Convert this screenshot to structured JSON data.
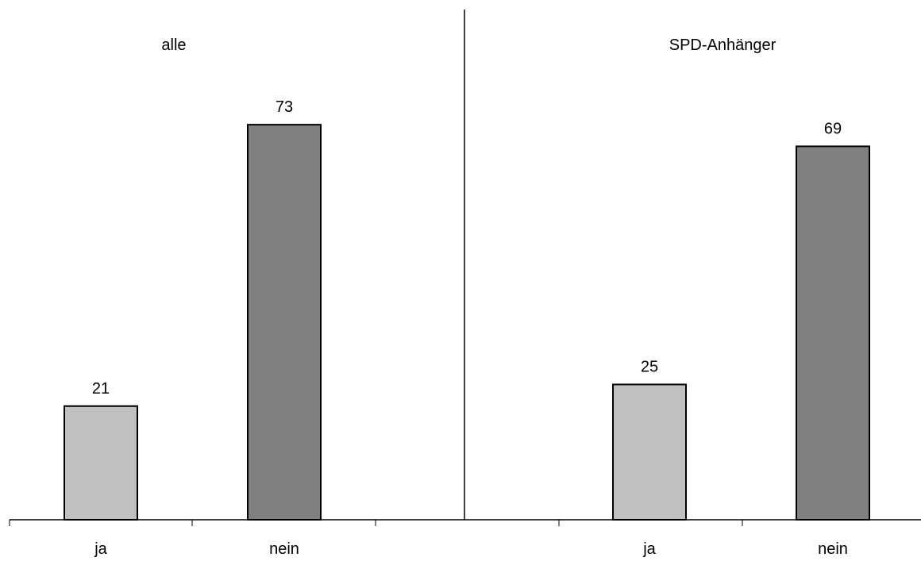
{
  "chart_data": [
    {
      "type": "bar",
      "title": "alle",
      "categories": [
        "ja",
        "nein"
      ],
      "values": [
        21,
        73
      ],
      "colors": [
        "#c0c0c0",
        "#808080"
      ],
      "ylim": [
        0,
        100
      ],
      "grid": false
    },
    {
      "type": "bar",
      "title": "SPD-Anhänger",
      "categories": [
        "ja",
        "nein"
      ],
      "values": [
        25,
        69
      ],
      "colors": [
        "#c0c0c0",
        "#808080"
      ],
      "ylim": [
        0,
        100
      ],
      "grid": false
    }
  ]
}
